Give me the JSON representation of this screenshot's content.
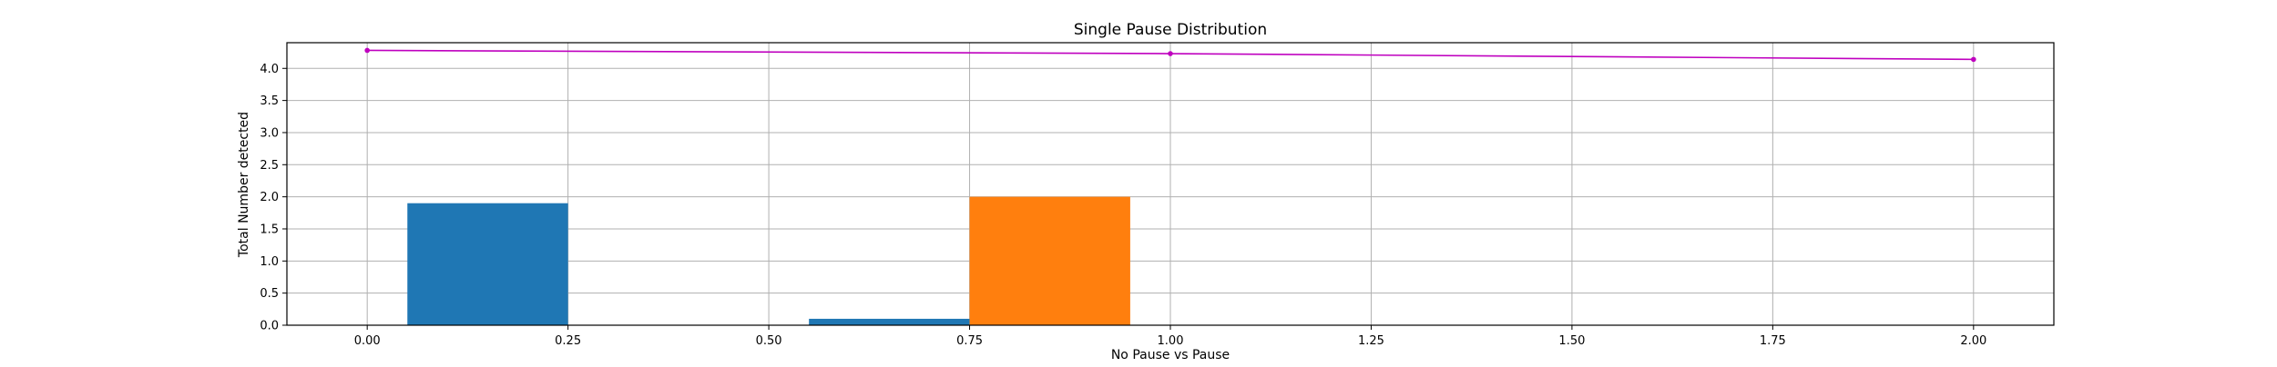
{
  "chart_data": {
    "type": "bar",
    "title": "Single Pause Distribution",
    "xlabel": "No Pause vs Pause",
    "ylabel": "Total Number detected",
    "xlim": [
      -0.1,
      2.1
    ],
    "ylim": [
      0,
      4.4
    ],
    "grid": true,
    "x_ticks": [
      "0.00",
      "0.25",
      "0.50",
      "0.75",
      "1.00",
      "1.25",
      "1.50",
      "1.75",
      "2.00"
    ],
    "y_ticks": [
      "0.0",
      "0.5",
      "1.0",
      "1.5",
      "2.0",
      "2.5",
      "3.0",
      "3.5",
      "4.0"
    ],
    "bars": [
      {
        "x0": 0.05,
        "x1": 0.25,
        "value": 1.9,
        "color": "#1f77b4"
      },
      {
        "x0": 0.55,
        "x1": 0.75,
        "value": 0.1,
        "color": "#1f77b4"
      },
      {
        "x0": 0.75,
        "x1": 0.95,
        "value": 2.0,
        "color": "#ff7f0e"
      }
    ],
    "line": {
      "x": [
        0.0,
        1.0,
        2.0
      ],
      "y": [
        4.28,
        4.23,
        4.14
      ],
      "color": "#bf00bf"
    }
  }
}
